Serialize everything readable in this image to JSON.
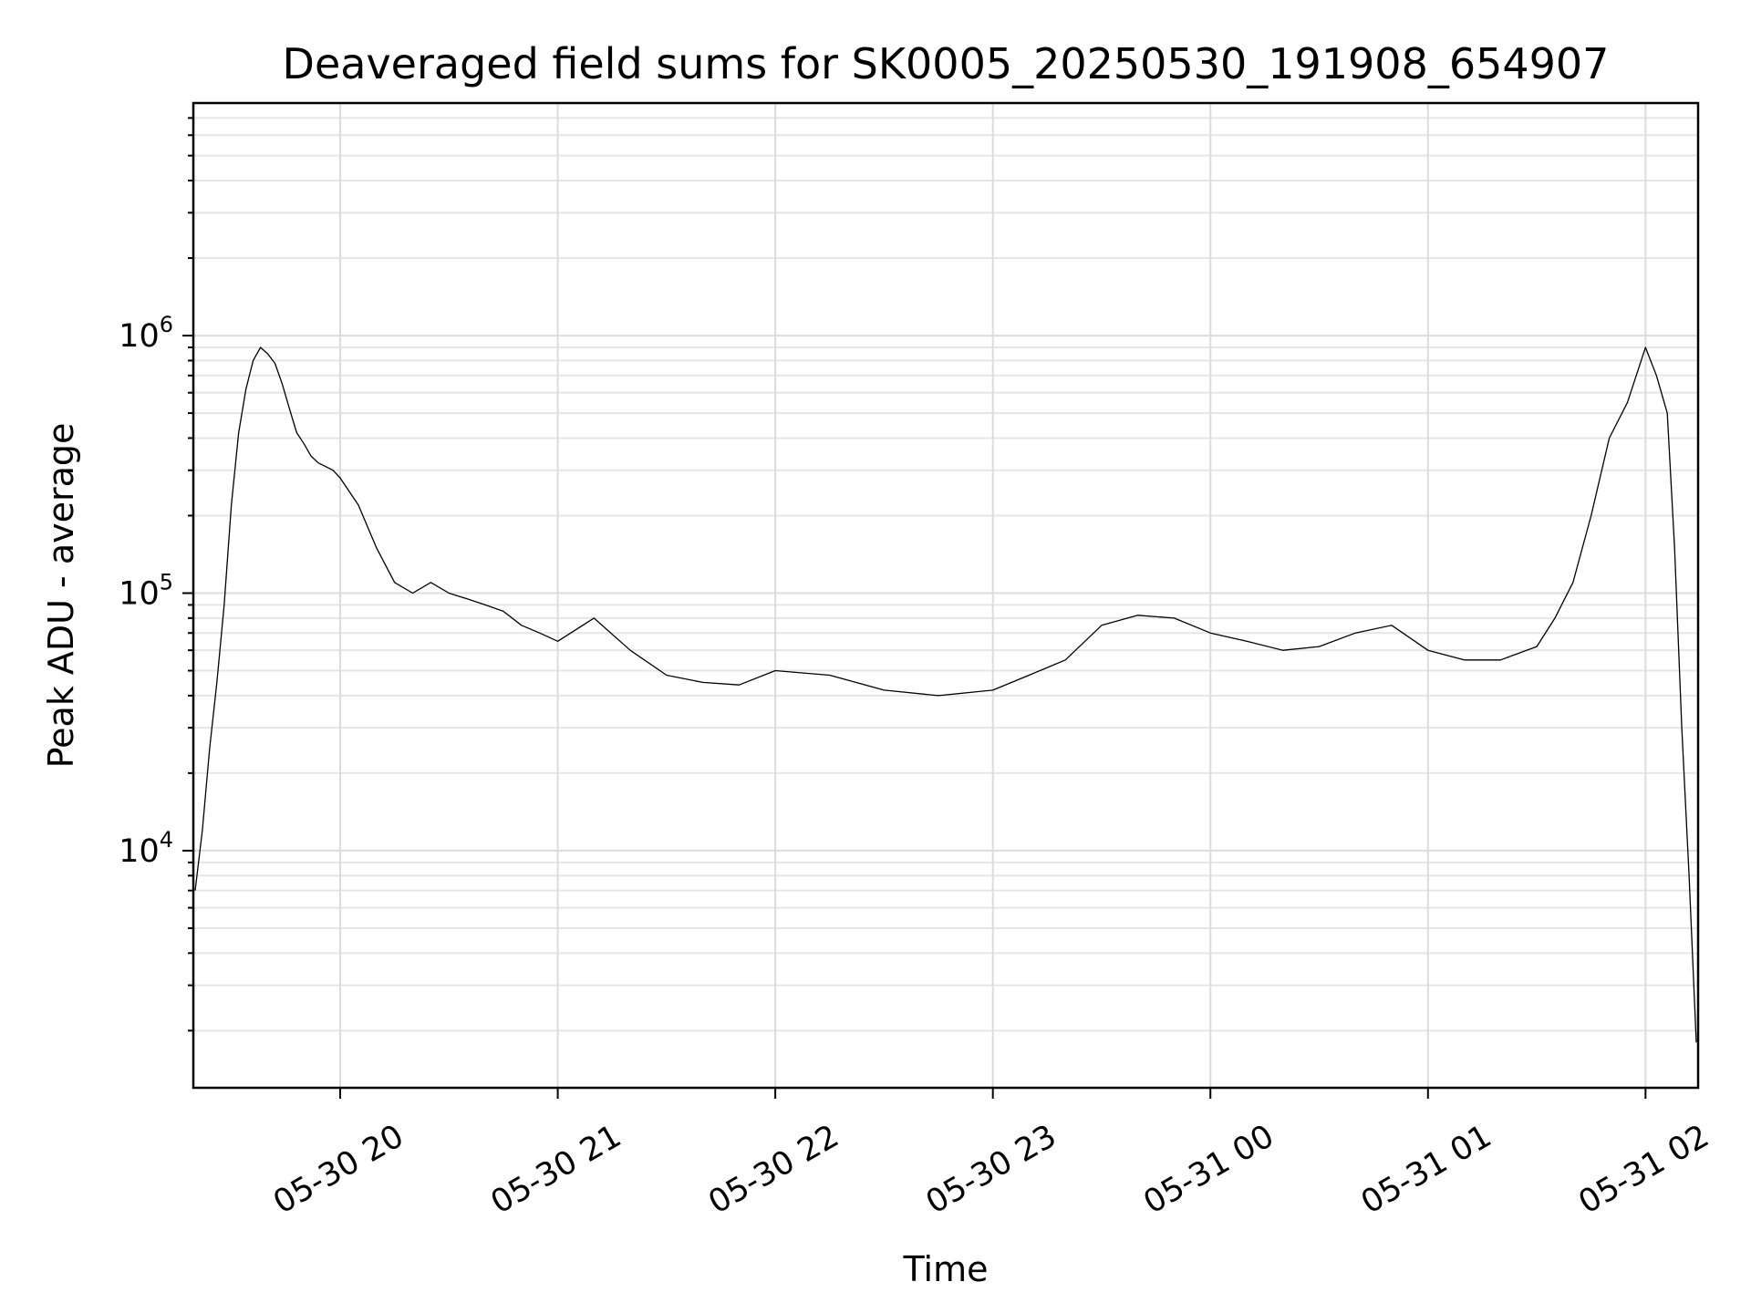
{
  "chart_data": {
    "type": "line",
    "title": "Deaveraged field sums for SK0005_20250530_191908_654907",
    "xlabel": "Time",
    "ylabel": "Peak ADU - average",
    "yscale": "log",
    "grid": true,
    "xlim": [
      "2025-05-30 19:19:30",
      "2025-05-31 02:14:30"
    ],
    "ylim": [
      1200,
      8000000
    ],
    "x_ticks": [
      "2025-05-30 20:00",
      "2025-05-30 21:00",
      "2025-05-30 22:00",
      "2025-05-30 23:00",
      "2025-05-31 00:00",
      "2025-05-31 01:00",
      "2025-05-31 02:00"
    ],
    "x_tick_labels": [
      "05-30 20",
      "05-30 21",
      "05-30 22",
      "05-30 23",
      "05-31 00",
      "05-31 01",
      "05-31 02"
    ],
    "y_ticks": [
      10000,
      100000,
      1000000
    ],
    "y_tick_labels": [
      {
        "base": "10",
        "exp": "4"
      },
      {
        "base": "10",
        "exp": "5"
      },
      {
        "base": "10",
        "exp": "6"
      }
    ],
    "series": [
      {
        "color": "#000000",
        "x": [
          "2025-05-30 19:20",
          "2025-05-30 19:22",
          "2025-05-30 19:24",
          "2025-05-30 19:26",
          "2025-05-30 19:28",
          "2025-05-30 19:30",
          "2025-05-30 19:32",
          "2025-05-30 19:34",
          "2025-05-30 19:36",
          "2025-05-30 19:38",
          "2025-05-30 19:40",
          "2025-05-30 19:42",
          "2025-05-30 19:44",
          "2025-05-30 19:46",
          "2025-05-30 19:48",
          "2025-05-30 19:50",
          "2025-05-30 19:52",
          "2025-05-30 19:54",
          "2025-05-30 19:56",
          "2025-05-30 19:58",
          "2025-05-30 20:00",
          "2025-05-30 20:05",
          "2025-05-30 20:10",
          "2025-05-30 20:15",
          "2025-05-30 20:20",
          "2025-05-30 20:25",
          "2025-05-30 20:30",
          "2025-05-30 20:35",
          "2025-05-30 20:40",
          "2025-05-30 20:45",
          "2025-05-30 20:50",
          "2025-05-30 20:55",
          "2025-05-30 21:00",
          "2025-05-30 21:10",
          "2025-05-30 21:20",
          "2025-05-30 21:30",
          "2025-05-30 21:40",
          "2025-05-30 21:50",
          "2025-05-30 22:00",
          "2025-05-30 22:15",
          "2025-05-30 22:30",
          "2025-05-30 22:45",
          "2025-05-30 23:00",
          "2025-05-30 23:10",
          "2025-05-30 23:20",
          "2025-05-30 23:30",
          "2025-05-30 23:40",
          "2025-05-30 23:50",
          "2025-05-31 00:00",
          "2025-05-31 00:10",
          "2025-05-31 00:20",
          "2025-05-31 00:30",
          "2025-05-31 00:40",
          "2025-05-31 00:50",
          "2025-05-31 01:00",
          "2025-05-31 01:10",
          "2025-05-31 01:20",
          "2025-05-31 01:30",
          "2025-05-31 01:35",
          "2025-05-31 01:40",
          "2025-05-31 01:45",
          "2025-05-31 01:50",
          "2025-05-31 01:55",
          "2025-05-31 02:00",
          "2025-05-31 02:03",
          "2025-05-31 02:06",
          "2025-05-31 02:08",
          "2025-05-31 02:10",
          "2025-05-31 02:12",
          "2025-05-31 02:14"
        ],
        "y": [
          7000,
          12000,
          25000,
          45000,
          90000,
          220000,
          420000,
          620000,
          800000,
          900000,
          850000,
          780000,
          650000,
          520000,
          420000,
          380000,
          340000,
          320000,
          310000,
          300000,
          280000,
          220000,
          150000,
          110000,
          100000,
          110000,
          100000,
          95000,
          90000,
          85000,
          75000,
          70000,
          65000,
          80000,
          60000,
          48000,
          45000,
          44000,
          50000,
          48000,
          42000,
          40000,
          42000,
          48000,
          55000,
          75000,
          82000,
          80000,
          70000,
          65000,
          60000,
          62000,
          70000,
          75000,
          60000,
          55000,
          55000,
          62000,
          80000,
          110000,
          200000,
          400000,
          550000,
          900000,
          700000,
          500000,
          150000,
          30000,
          8000,
          1800
        ]
      }
    ]
  }
}
